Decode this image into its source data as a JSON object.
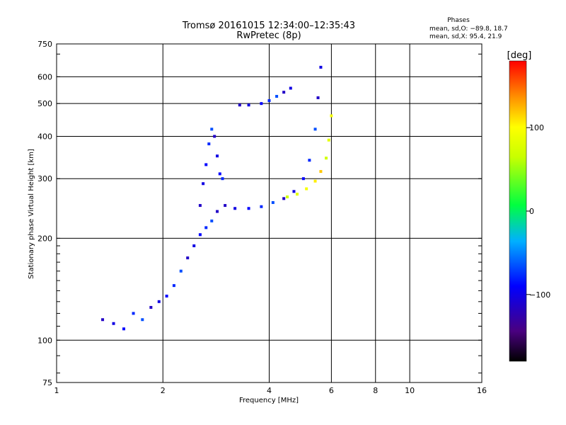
{
  "chart_data": {
    "type": "scatter",
    "title": "Tromsø 20161015 12:34:00–12:35:43",
    "subtitle": "RwPretec (8p)",
    "xlabel": "Frequency [MHz]",
    "ylabel": "Stationary phase Virtual Height [km]",
    "x_scale": "log2",
    "y_scale": "log",
    "xlim": [
      1,
      16
    ],
    "ylim": [
      75,
      750
    ],
    "x_ticks": [
      "1",
      "2",
      "4",
      "6",
      "8",
      "10",
      "16"
    ],
    "y_ticks": [
      "75",
      "100",
      "200",
      "300",
      "400",
      "500",
      "600",
      "750"
    ],
    "grid": true,
    "phases_legend": {
      "title": "Phases",
      "line1": "mean, sd,O: −89.8, 18.7",
      "line2": "mean, sd,X:  95.4, 21.9"
    },
    "colorbar": {
      "label": "[deg]",
      "range": [
        -180,
        180
      ],
      "ticks": [
        "100",
        "0",
        "−100"
      ]
    },
    "series": [
      {
        "name": "O",
        "approx_phase_deg": -90,
        "traces": [
          {
            "x": [
              1.35,
              1.45,
              1.55,
              1.65,
              1.75,
              1.85,
              1.95,
              2.05,
              2.15,
              2.25,
              2.35,
              2.45,
              2.55,
              2.65,
              2.75,
              2.85
            ],
            "y": [
              115,
              112,
              108,
              120,
              115,
              125,
              130,
              135,
              145,
              160,
              175,
              190,
              205,
              215,
              225,
              240
            ]
          },
          {
            "x": [
              2.55,
              2.6,
              2.65,
              2.7,
              2.75,
              2.8,
              2.85,
              2.9,
              2.95
            ],
            "y": [
              250,
              290,
              330,
              380,
              420,
              400,
              350,
              310,
              300
            ]
          },
          {
            "x": [
              3.0,
              3.2,
              3.5,
              3.8,
              4.1,
              4.4,
              4.7,
              5.0,
              5.2,
              5.4,
              5.5,
              5.6
            ],
            "y": [
              250,
              245,
              245,
              248,
              255,
              262,
              275,
              300,
              340,
              420,
              520,
              640
            ]
          },
          {
            "x": [
              3.3,
              3.5,
              3.8,
              4.0,
              4.2,
              4.4,
              4.6
            ],
            "y": [
              495,
              495,
              500,
              510,
              525,
              540,
              555
            ]
          }
        ]
      },
      {
        "name": "X",
        "approx_phase_deg": 95,
        "traces": [
          {
            "x": [
              4.5,
              4.8,
              5.1,
              5.4,
              5.6,
              5.8,
              5.9,
              6.0
            ],
            "y": [
              265,
              270,
              280,
              295,
              315,
              345,
              390,
              460
            ]
          }
        ]
      }
    ]
  }
}
